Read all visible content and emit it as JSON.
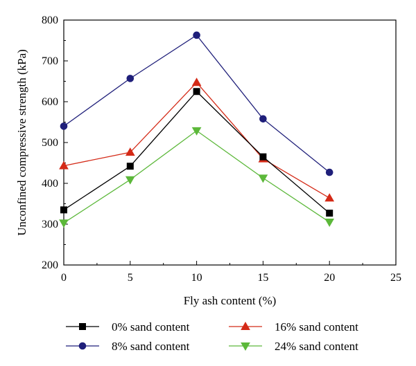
{
  "chart_data": {
    "type": "line",
    "title": "",
    "xlabel": "Fly ash content (%)",
    "ylabel": "Unconfined compressive strength (kPa)",
    "xlim": [
      0,
      25
    ],
    "ylim": [
      200,
      800
    ],
    "xticks": [
      0,
      5,
      10,
      15,
      20,
      25
    ],
    "yticks": [
      200,
      300,
      400,
      500,
      600,
      700,
      800
    ],
    "x": [
      0,
      5,
      10,
      15,
      20
    ],
    "grid": false,
    "legend_position": "bottom",
    "series": [
      {
        "name": "0% sand content",
        "values": [
          335,
          442,
          625,
          465,
          327
        ],
        "color": "#000000",
        "marker": "square"
      },
      {
        "name": "8% sand content",
        "values": [
          540,
          657,
          763,
          558,
          427
        ],
        "color": "#1f1f7a",
        "marker": "circle"
      },
      {
        "name": "16% sand content",
        "values": [
          443,
          476,
          647,
          460,
          364
        ],
        "color": "#d42a17",
        "marker": "triangle-up"
      },
      {
        "name": "24% sand content",
        "values": [
          303,
          409,
          529,
          413,
          305
        ],
        "color": "#5cb83a",
        "marker": "triangle-down"
      }
    ]
  }
}
